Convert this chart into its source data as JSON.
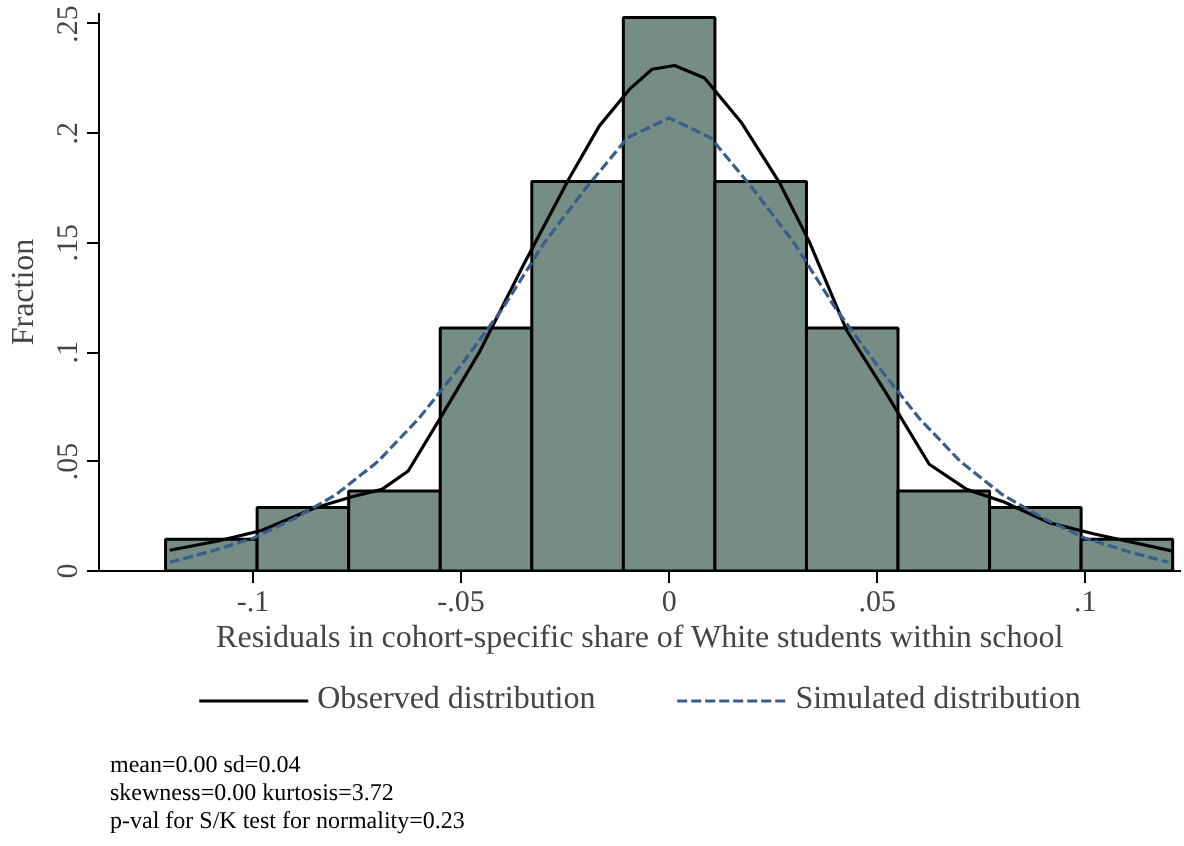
{
  "chart_data": {
    "type": "histogram",
    "xlabel": "Residuals in cohort-specific share of White students within school",
    "ylabel": "Fraction",
    "bins": [
      -0.121,
      -0.099,
      -0.077,
      -0.055,
      -0.033,
      -0.011,
      0.011,
      0.033,
      0.055,
      0.077,
      0.099,
      0.121
    ],
    "values": [
      0.0145,
      0.029,
      0.0366,
      0.111,
      0.178,
      0.253,
      0.178,
      0.111,
      0.0366,
      0.029,
      0.0145
    ],
    "color": "#758d84",
    "series": [
      {
        "name": "Observed distribution",
        "type": "line",
        "color": "#000000",
        "line_style": "solid",
        "x": [
          -0.12,
          -0.1087,
          -0.0978,
          -0.0852,
          -0.0762,
          -0.069,
          -0.0627,
          -0.0546,
          -0.0456,
          -0.0348,
          -0.024,
          -0.0168,
          -0.0095,
          -0.0041,
          0.0013,
          0.0085,
          0.0175,
          0.0265,
          0.0337,
          0.0427,
          0.0517,
          0.0625,
          0.0715,
          0.0805,
          0.0914,
          0.1022,
          0.121
        ],
        "values": [
          0.0095,
          0.0136,
          0.0186,
          0.0288,
          0.0339,
          0.0373,
          0.0457,
          0.0711,
          0.1,
          0.1406,
          0.1795,
          0.2033,
          0.2202,
          0.2293,
          0.231,
          0.2253,
          0.2046,
          0.1775,
          0.1504,
          0.1098,
          0.0827,
          0.0488,
          0.0373,
          0.0315,
          0.022,
          0.0169,
          0.0091
        ]
      },
      {
        "name": "Simulated distribution",
        "type": "line",
        "color": "#3a5e8c",
        "line_style": "dashed",
        "x": [
          -0.12,
          -0.11,
          -0.1,
          -0.09,
          -0.08,
          -0.07,
          -0.06,
          -0.05,
          -0.04,
          -0.03,
          -0.02,
          -0.01,
          0,
          0.01,
          0.02,
          0.03,
          0.04,
          0.05,
          0.06,
          0.07,
          0.08,
          0.09,
          0.1,
          0.11,
          0.12
        ],
        "values": [
          0.004,
          0.009,
          0.015,
          0.024,
          0.035,
          0.05,
          0.07,
          0.094,
          0.12,
          0.15,
          0.175,
          0.198,
          0.207,
          0.198,
          0.175,
          0.15,
          0.12,
          0.094,
          0.07,
          0.05,
          0.035,
          0.024,
          0.015,
          0.009,
          0.004
        ]
      }
    ],
    "xlim": [
      -0.137,
      0.123
    ],
    "ylim": [
      0,
      0.255
    ],
    "xticks": [
      {
        "value": -0.1,
        "label": "-.1"
      },
      {
        "value": -0.05,
        "label": "-.05"
      },
      0,
      {
        "value": 0.05,
        "label": ".05"
      },
      {
        "value": 0.1,
        "label": ".1"
      }
    ],
    "yticks": [
      0,
      {
        "value": 0.05,
        "label": ".05"
      },
      {
        "value": 0.1,
        "label": ".1"
      },
      {
        "value": 0.15,
        "label": ".15"
      },
      {
        "value": 0.2,
        "label": ".2"
      },
      {
        "value": 0.25,
        "label": ".25"
      }
    ],
    "grid": false,
    "legend": "bottom",
    "annotations": [
      "mean=0.00 sd=0.04",
      "skewness=0.00 kurtosis=3.72",
      "p-val for S/K test for normality=0.23"
    ]
  }
}
